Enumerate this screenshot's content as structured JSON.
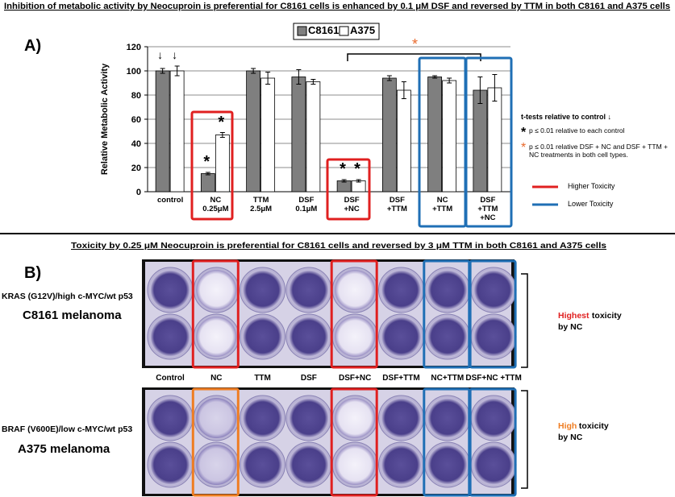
{
  "chart_data": {
    "type": "bar",
    "title": "Inhibition of metabolic activity by Neocuproin is preferential for C8161 cells is  enhanced by 0.1 μM DSF and reversed by TTM  in  both C8161 and A375  cells",
    "y_label": "Relative Metabolic Activity",
    "categories": [
      "control",
      "NC\n0.25μM",
      "TTM\n2.5μM",
      "DSF\n0.1μM",
      "DSF\n+NC",
      "DSF\n+TTM",
      "NC\n+TTM",
      "DSF\n+TTM\n+NC"
    ],
    "series": [
      {
        "name": "C8161",
        "color": "#7f7f7f",
        "values": [
          100,
          15,
          100,
          95,
          9,
          94,
          95,
          84
        ],
        "errors": [
          2,
          1,
          2,
          6,
          1,
          2,
          1,
          11
        ]
      },
      {
        "name": "A375",
        "color": "#ffffff",
        "values": [
          100,
          47,
          94,
          91,
          9,
          84,
          92,
          86
        ],
        "errors": [
          4,
          2,
          5,
          2,
          1,
          7,
          2,
          11
        ]
      }
    ],
    "ylim": [
      0,
      120
    ],
    "yticks": [
      0,
      20,
      40,
      60,
      80,
      100,
      120
    ],
    "grid": true,
    "legend": "top"
  },
  "figure": {
    "panel_a": "A)",
    "arrows": [
      "↓",
      "↓"
    ],
    "stars": [
      "*",
      "*",
      "*",
      "*"
    ],
    "bracket_star": "*",
    "ttest_title": "t-tests relative to control ↓",
    "note1_star": "*",
    "note1": "p ≤ 0.01 relative to each control",
    "note2_star": "*",
    "note2": "p ≤ 0.01 relative DSF + NC and DSF + TTM + NC treatments in both cell types.",
    "higher": "Higher Toxicity",
    "lower": "Lower Toxicity",
    "title_b": "Toxicity by 0.25 μM Neocuproin is preferential for  C8161 cells  and reversed by 3 μM TTM  in  both C8161 and A375  cells",
    "panel_b": "B)",
    "c8161_genotype": "KRAS (G12V)/high c-MYC/wt p53",
    "c8161_name": "C8161 melanoma",
    "a375_genotype": "BRAF (V600E)/low c-MYC/wt p53",
    "a375_name": "A375 melanoma",
    "columns": [
      "Control",
      "NC",
      "TTM",
      "DSF",
      "DSF+NC",
      "DSF+TTM",
      "NC+TTM",
      "DSF+NC +TTM"
    ],
    "c8161_tox": [
      "Highest",
      " toxicity",
      "by NC"
    ],
    "a375_tox": [
      "High",
      " toxicity",
      "by NC"
    ]
  }
}
